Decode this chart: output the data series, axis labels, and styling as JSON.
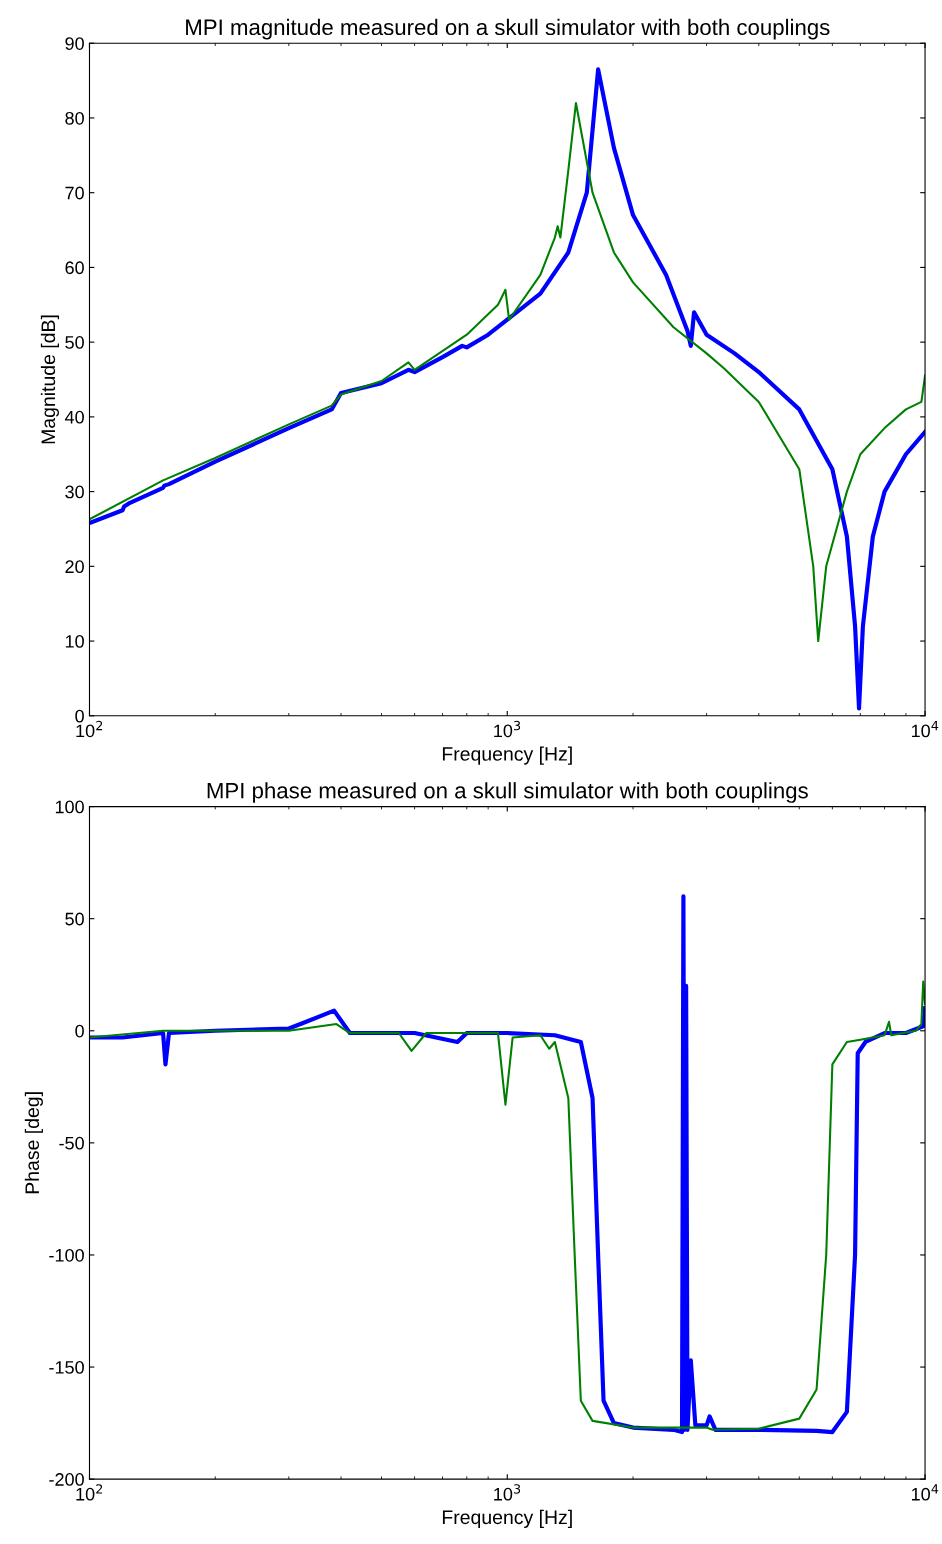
{
  "chart_data": [
    {
      "type": "line",
      "title": "MPI magnitude measured on a skull simulator with both couplings",
      "xlabel": "Frequency [Hz]",
      "ylabel": "Magnitude [dB]",
      "log": "x",
      "xlim": [
        100,
        10000
      ],
      "xticks": [
        {
          "value": 100,
          "label": "10$^{2}$"
        },
        {
          "value": 1000,
          "label": "10$^{3}$"
        },
        {
          "value": 10000,
          "label": "10$^{4}$"
        }
      ],
      "ylim": [
        0,
        90
      ],
      "yticks": [
        0,
        10,
        20,
        30,
        40,
        50,
        60,
        70,
        80,
        90
      ],
      "series": [
        {
          "color": "#0000ff",
          "x": [
            100,
            120,
            121,
            125,
            150,
            151,
            155,
            200,
            300,
            380,
            400,
            500,
            580,
            600,
            700,
            780,
            800,
            900,
            1000,
            1200,
            1400,
            1550,
            1650,
            1800,
            2000,
            2400,
            2700,
            2750,
            2800,
            3000,
            3500,
            4000,
            5000,
            6000,
            6500,
            6800,
            6950,
            7100,
            7500,
            8000,
            9000,
            10000
          ],
          "values": [
            25.8,
            27.5,
            28,
            28.5,
            30.5,
            30.8,
            31,
            34,
            38.5,
            41,
            43.2,
            44.5,
            46.3,
            46,
            48,
            49.5,
            49.3,
            51,
            53,
            56.5,
            62,
            70,
            86.5,
            76,
            67,
            59,
            51.5,
            49.5,
            54,
            51,
            48.5,
            46,
            41,
            33,
            24,
            12,
            1,
            12,
            24,
            30,
            35,
            38
          ]
        },
        {
          "color": "#008000",
          "x": [
            100,
            150,
            200,
            300,
            380,
            400,
            500,
            580,
            600,
            800,
            950,
            990,
            1010,
            1200,
            1300,
            1320,
            1340,
            1400,
            1460,
            1600,
            1800,
            2000,
            2500,
            3000,
            3300,
            4000,
            5000,
            5400,
            5550,
            5800,
            6500,
            7000,
            8000,
            9000,
            9800,
            10000
          ],
          "values": [
            26.3,
            31.5,
            34.5,
            39,
            41.5,
            43,
            44.8,
            47.3,
            46.3,
            51,
            55,
            57,
            53,
            59,
            64,
            65.5,
            64,
            73,
            82,
            70,
            62,
            58,
            52,
            48.5,
            46.5,
            42,
            33,
            20,
            10,
            20,
            30,
            35,
            38.5,
            41,
            42,
            45.5
          ]
        }
      ]
    },
    {
      "type": "line",
      "title": "MPI phase measured on a skull simulator with both couplings",
      "xlabel": "Frequency [Hz]",
      "ylabel": "Phase [deg]",
      "log": "x",
      "xlim": [
        100,
        10000
      ],
      "xticks": [
        {
          "value": 100,
          "label": "10$^{2}$"
        },
        {
          "value": 1000,
          "label": "10$^{3}$"
        },
        {
          "value": 10000,
          "label": "10$^{4}$"
        }
      ],
      "ylim": [
        -200,
        100
      ],
      "yticks": [
        -200,
        -150,
        -100,
        -50,
        0,
        50,
        100
      ],
      "series": [
        {
          "color": "#0000ff",
          "x": [
            100,
            120,
            150,
            152,
            155,
            200,
            300,
            320,
            385,
            420,
            600,
            760,
            800,
            1000,
            1300,
            1500,
            1600,
            1650,
            1700,
            1800,
            2000,
            2500,
            2620,
            2640,
            2660,
            2680,
            2700,
            2750,
            2820,
            3000,
            3050,
            3150,
            4000,
            5500,
            6000,
            6500,
            6800,
            6900,
            7200,
            8000,
            9000,
            9900,
            10000
          ],
          "values": [
            -3,
            -3,
            -1,
            -15,
            -1,
            0,
            1,
            3,
            9,
            -1,
            -1,
            -5,
            -1,
            -1,
            -2,
            -5,
            -30,
            -100,
            -165,
            -175,
            -177,
            -178,
            -179,
            60,
            -178,
            20,
            -178,
            -147,
            -176,
            -176,
            -172,
            -178,
            -178,
            -178.5,
            -179,
            -170,
            -100,
            -10,
            -5,
            -1,
            -1,
            2,
            10
          ]
        },
        {
          "color": "#008000",
          "x": [
            100,
            150,
            300,
            390,
            420,
            550,
            590,
            640,
            950,
            990,
            1030,
            1200,
            1260,
            1300,
            1400,
            1450,
            1500,
            1600,
            2000,
            3000,
            3100,
            4000,
            5000,
            5500,
            5800,
            6000,
            6500,
            7000,
            8000,
            8200,
            8300,
            9500,
            9800,
            9900,
            10000
          ],
          "values": [
            -3,
            0,
            0,
            3,
            -1,
            -1,
            -9,
            -1,
            -1,
            -33,
            -3,
            -2,
            -8,
            -5,
            -30,
            -100,
            -165,
            -174,
            -177,
            -177,
            -178,
            -177.5,
            -173,
            -160,
            -100,
            -15,
            -5,
            -4,
            -2,
            4,
            -2,
            0,
            3,
            22,
            12
          ]
        }
      ]
    }
  ]
}
